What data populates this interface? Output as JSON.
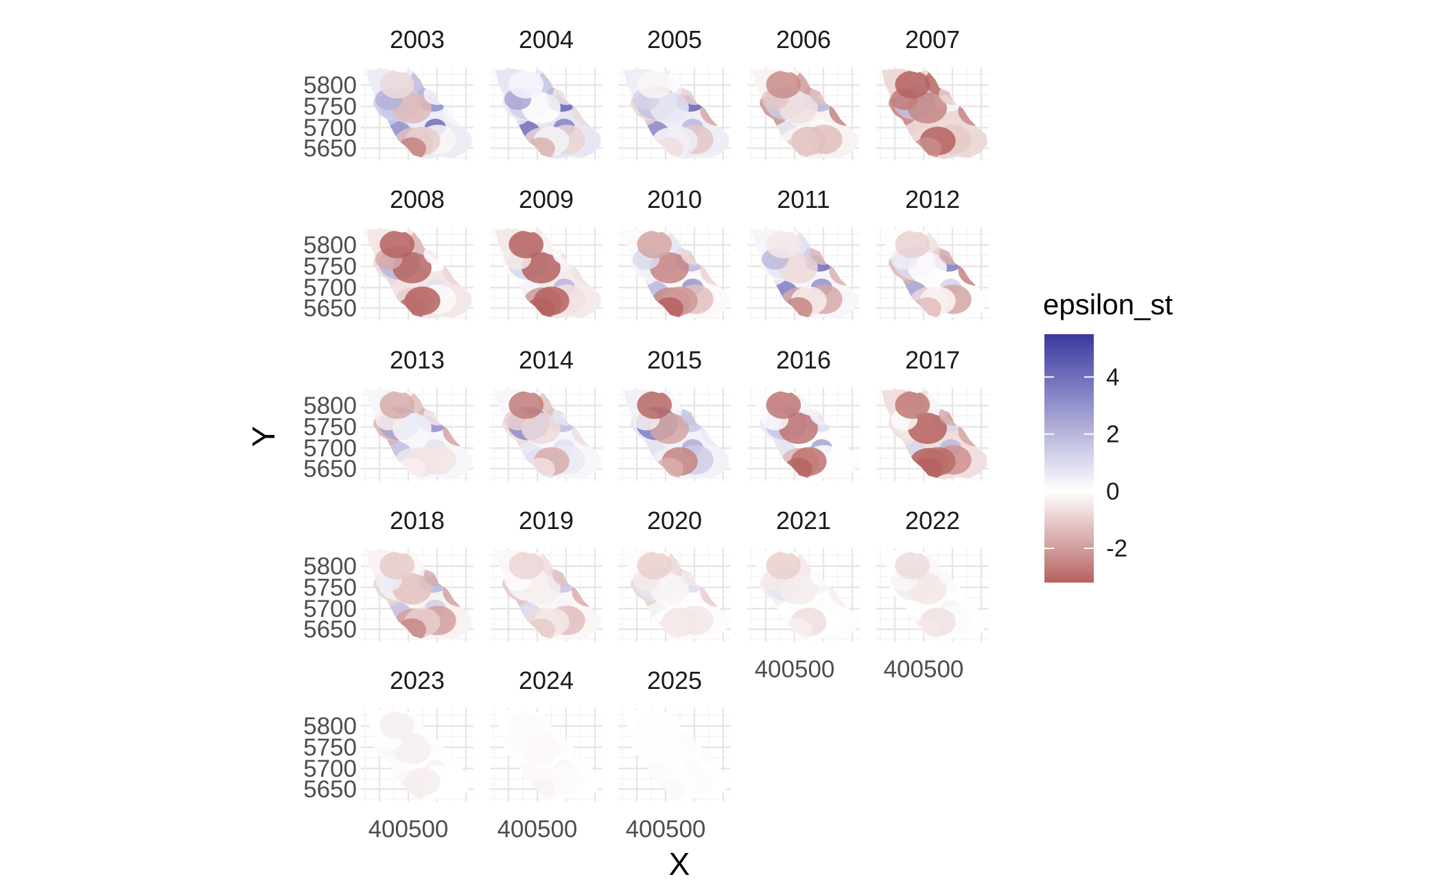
{
  "chart_data": {
    "type": "heatmap",
    "xlabel": "X",
    "ylabel": "Y",
    "legend": {
      "title": "epsilon_st",
      "placement": "right",
      "ticks": [
        4,
        2,
        0,
        -2
      ],
      "range": [
        -3.2,
        5.5
      ],
      "colors": {
        "low": "#b5625f",
        "mid": "#ffffff",
        "high": "#3b38a0"
      }
    },
    "x_ticks": [
      400500
    ],
    "y_ticks": [
      5800,
      5750,
      5700,
      5650
    ],
    "grid": true,
    "panels": [
      {
        "label": "2003",
        "intensity": 1.0,
        "bias": 0.45
      },
      {
        "label": "2004",
        "intensity": 1.0,
        "bias": 0.55
      },
      {
        "label": "2005",
        "intensity": 1.0,
        "bias": 0.4
      },
      {
        "label": "2006",
        "intensity": 0.9,
        "bias": -0.25
      },
      {
        "label": "2007",
        "intensity": 1.0,
        "bias": -0.65
      },
      {
        "label": "2008",
        "intensity": 1.0,
        "bias": -0.4
      },
      {
        "label": "2009",
        "intensity": 1.0,
        "bias": -0.35
      },
      {
        "label": "2010",
        "intensity": 1.0,
        "bias": -0.1
      },
      {
        "label": "2011",
        "intensity": 1.1,
        "bias": 0.2
      },
      {
        "label": "2012",
        "intensity": 1.0,
        "bias": 0.05
      },
      {
        "label": "2013",
        "intensity": 1.0,
        "bias": 0.2
      },
      {
        "label": "2014",
        "intensity": 0.95,
        "bias": 0.2
      },
      {
        "label": "2015",
        "intensity": 1.05,
        "bias": 0.3
      },
      {
        "label": "2016",
        "intensity": 0.95,
        "bias": -0.05
      },
      {
        "label": "2017",
        "intensity": 1.0,
        "bias": -0.55
      },
      {
        "label": "2018",
        "intensity": 0.75,
        "bias": -0.3
      },
      {
        "label": "2019",
        "intensity": 0.55,
        "bias": -0.25
      },
      {
        "label": "2020",
        "intensity": 0.4,
        "bias": -0.15
      },
      {
        "label": "2021",
        "intensity": 0.28,
        "bias": -0.1
      },
      {
        "label": "2022",
        "intensity": 0.2,
        "bias": -0.05
      },
      {
        "label": "2023",
        "intensity": 0.12,
        "bias": 0.0
      },
      {
        "label": "2024",
        "intensity": 0.07,
        "bias": 0.0
      },
      {
        "label": "2025",
        "intensity": 0.05,
        "bias": 0.0
      }
    ]
  }
}
